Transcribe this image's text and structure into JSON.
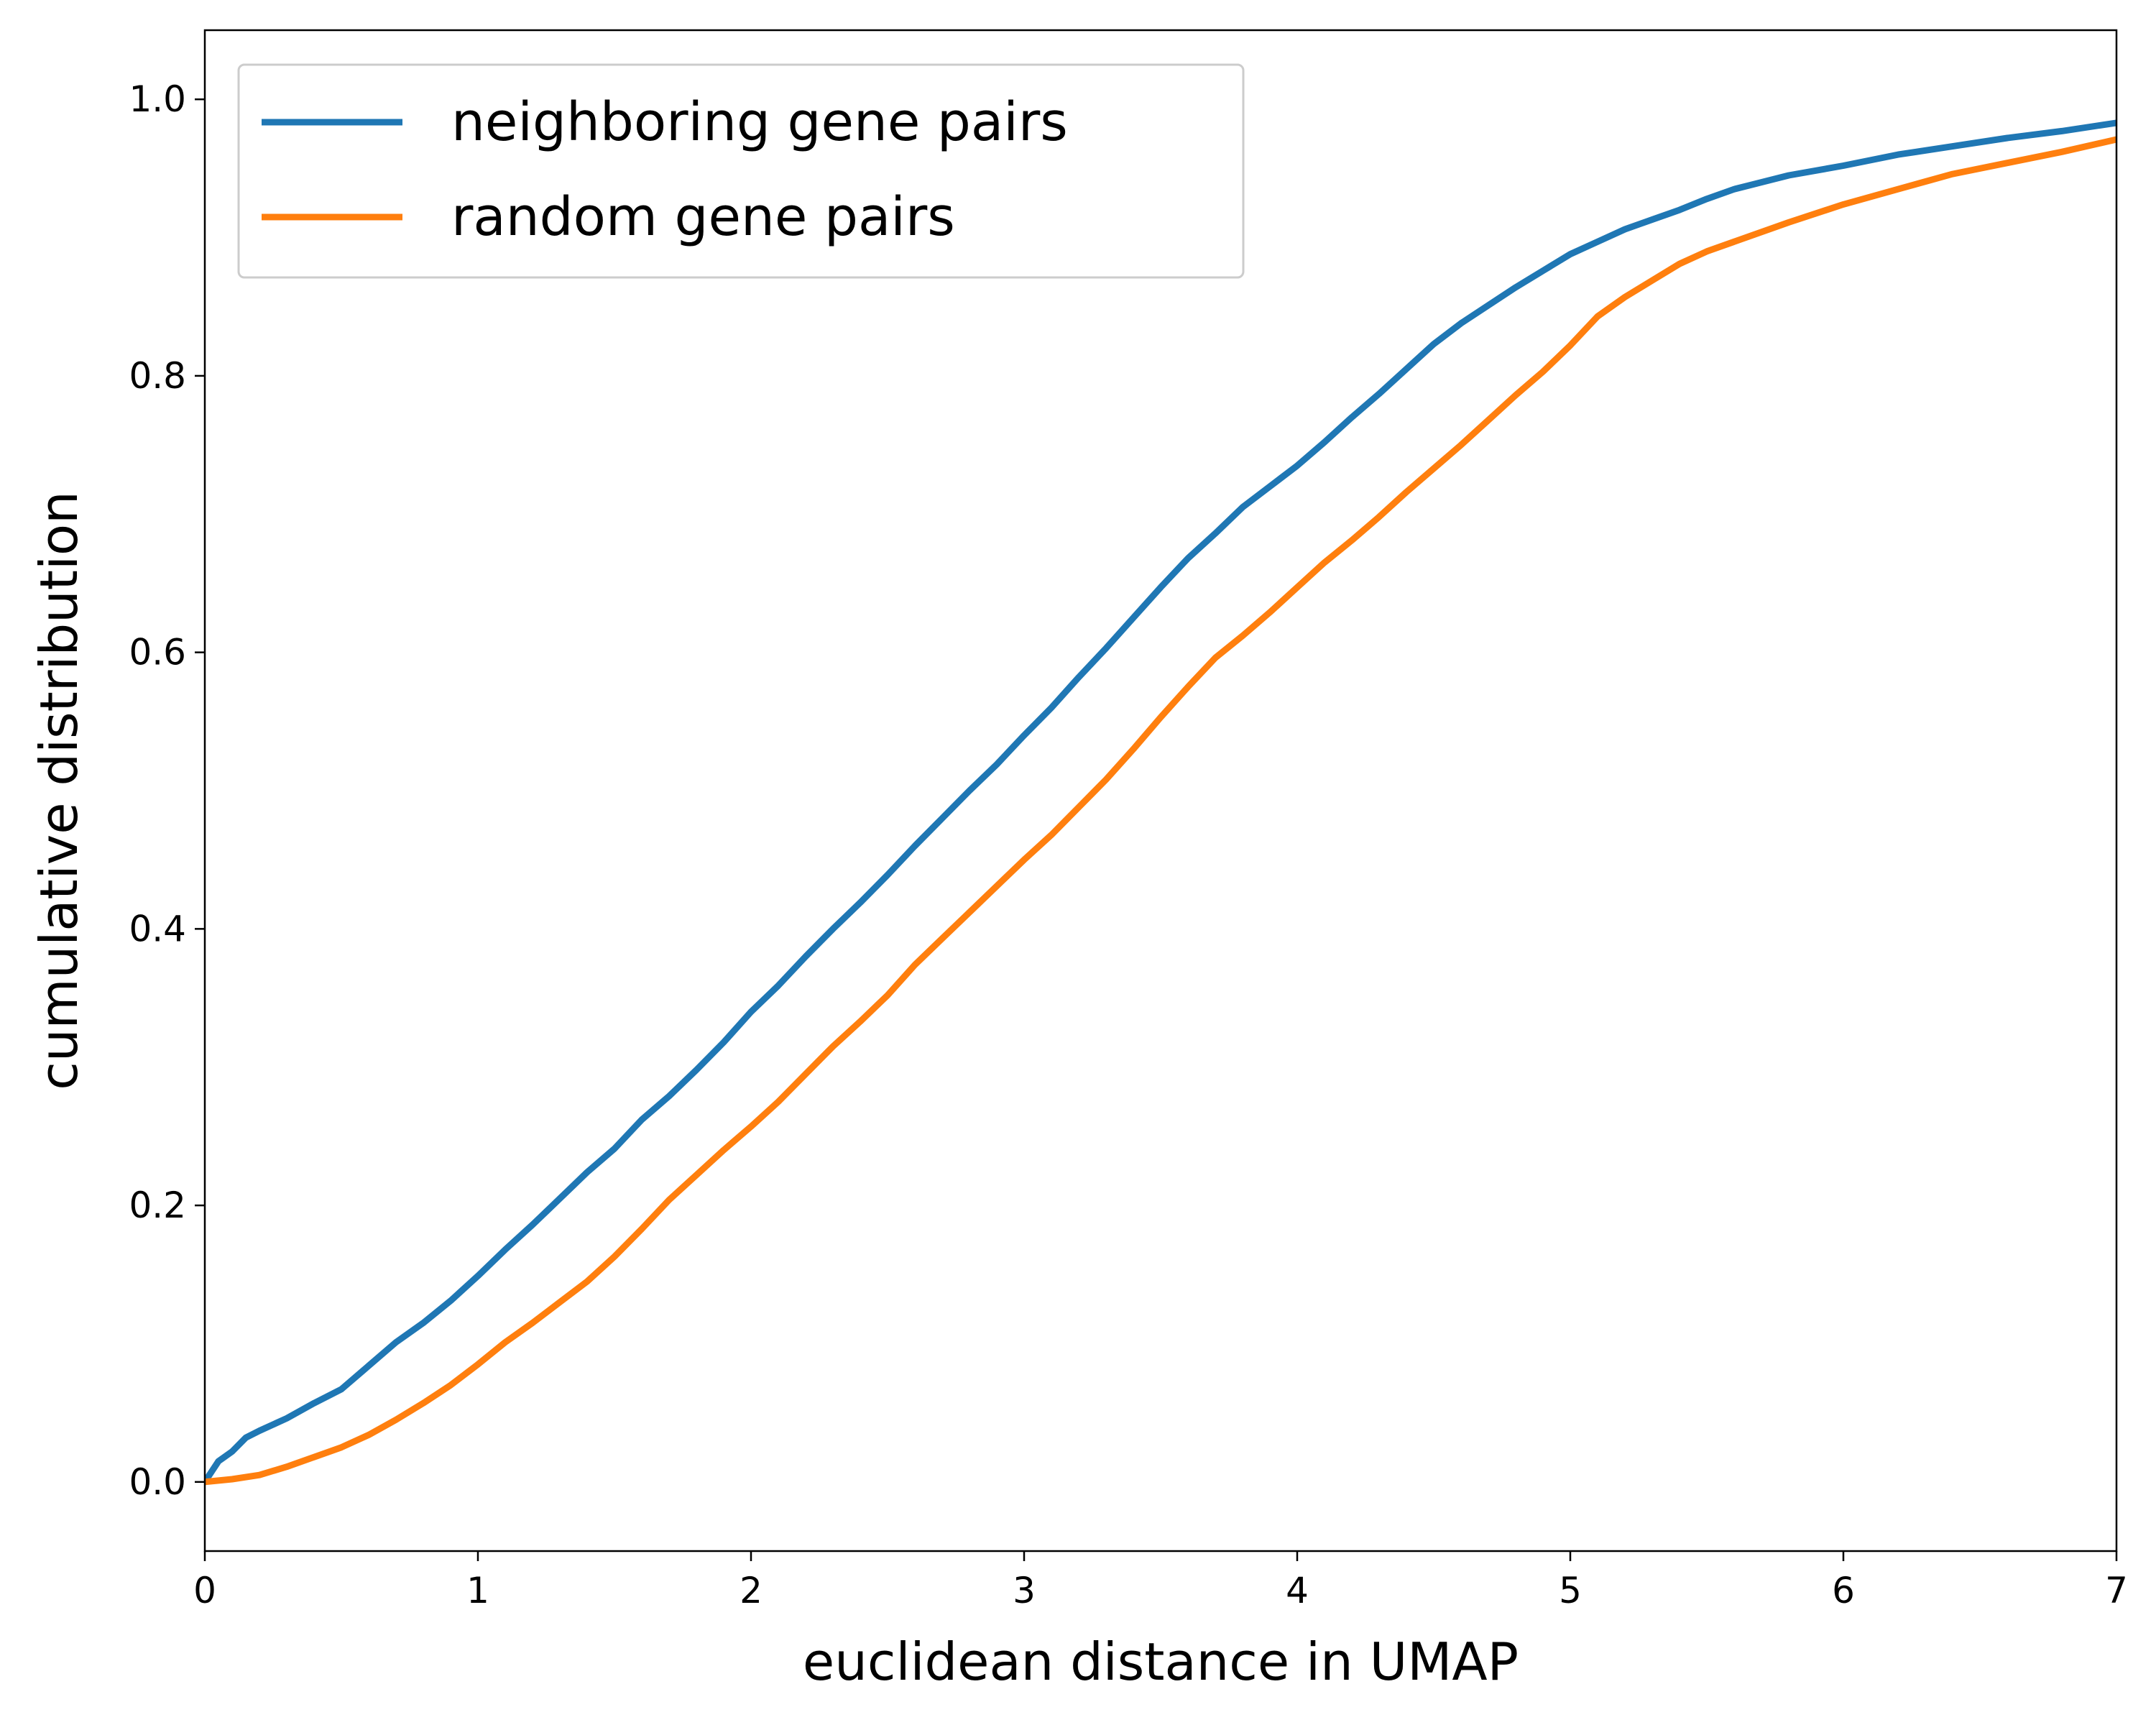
{
  "chart_data": {
    "type": "line",
    "xlabel": "euclidean distance in UMAP",
    "ylabel": "cumulative distribution",
    "xlim": [
      0,
      7
    ],
    "ylim": [
      -0.05,
      1.05
    ],
    "x_ticks": [
      0,
      1,
      2,
      3,
      4,
      5,
      6,
      7
    ],
    "x_tick_labels": [
      "0",
      "1",
      "2",
      "3",
      "4",
      "5",
      "6",
      "7"
    ],
    "y_ticks": [
      0.0,
      0.2,
      0.4,
      0.6,
      0.8,
      1.0
    ],
    "y_tick_labels": [
      "0.0",
      "0.2",
      "0.4",
      "0.6",
      "0.8",
      "1.0"
    ],
    "grid": false,
    "legend_position": "top-left",
    "series": [
      {
        "name": "neighboring gene pairs",
        "color": "#1f77b4",
        "x": [
          0,
          0.05,
          0.1,
          0.15,
          0.2,
          0.3,
          0.4,
          0.5,
          0.6,
          0.7,
          0.8,
          0.9,
          1.0,
          1.1,
          1.2,
          1.3,
          1.4,
          1.5,
          1.6,
          1.7,
          1.8,
          1.9,
          2.0,
          2.1,
          2.2,
          2.3,
          2.4,
          2.5,
          2.6,
          2.7,
          2.8,
          2.9,
          3.0,
          3.1,
          3.2,
          3.3,
          3.4,
          3.5,
          3.6,
          3.7,
          3.8,
          3.9,
          4.0,
          4.1,
          4.2,
          4.3,
          4.4,
          4.5,
          4.6,
          4.7,
          4.8,
          4.9,
          5.0,
          5.1,
          5.2,
          5.3,
          5.4,
          5.5,
          5.6,
          5.8,
          6.0,
          6.2,
          6.4,
          6.6,
          6.8,
          7.0
        ],
        "y": [
          0.0,
          0.015,
          0.022,
          0.032,
          0.037,
          0.046,
          0.057,
          0.067,
          0.084,
          0.101,
          0.115,
          0.131,
          0.149,
          0.168,
          0.186,
          0.205,
          0.224,
          0.241,
          0.262,
          0.279,
          0.298,
          0.318,
          0.34,
          0.359,
          0.38,
          0.4,
          0.419,
          0.439,
          0.46,
          0.48,
          0.5,
          0.519,
          0.54,
          0.56,
          0.582,
          0.603,
          0.625,
          0.647,
          0.668,
          0.686,
          0.705,
          0.72,
          0.735,
          0.752,
          0.77,
          0.787,
          0.805,
          0.823,
          0.838,
          0.851,
          0.864,
          0.876,
          0.888,
          0.897,
          0.906,
          0.913,
          0.92,
          0.928,
          0.935,
          0.945,
          0.952,
          0.96,
          0.966,
          0.972,
          0.977,
          0.983
        ]
      },
      {
        "name": "random gene pairs",
        "color": "#ff7f0e",
        "x": [
          0,
          0.1,
          0.2,
          0.3,
          0.4,
          0.5,
          0.6,
          0.7,
          0.8,
          0.9,
          1.0,
          1.1,
          1.2,
          1.3,
          1.4,
          1.5,
          1.6,
          1.7,
          1.8,
          1.9,
          2.0,
          2.1,
          2.2,
          2.3,
          2.4,
          2.5,
          2.6,
          2.7,
          2.8,
          2.9,
          3.0,
          3.1,
          3.2,
          3.3,
          3.4,
          3.5,
          3.6,
          3.7,
          3.8,
          3.9,
          4.0,
          4.1,
          4.2,
          4.3,
          4.4,
          4.5,
          4.6,
          4.7,
          4.8,
          4.9,
          5.0,
          5.1,
          5.2,
          5.3,
          5.4,
          5.5,
          5.6,
          5.8,
          6.0,
          6.2,
          6.4,
          6.6,
          6.8,
          7.0
        ],
        "y": [
          0.0,
          0.002,
          0.005,
          0.011,
          0.018,
          0.025,
          0.034,
          0.045,
          0.057,
          0.07,
          0.085,
          0.101,
          0.115,
          0.13,
          0.145,
          0.163,
          0.183,
          0.204,
          0.222,
          0.24,
          0.257,
          0.275,
          0.295,
          0.315,
          0.333,
          0.352,
          0.374,
          0.393,
          0.412,
          0.431,
          0.45,
          0.468,
          0.488,
          0.508,
          0.53,
          0.553,
          0.575,
          0.596,
          0.612,
          0.629,
          0.647,
          0.665,
          0.681,
          0.698,
          0.716,
          0.733,
          0.75,
          0.768,
          0.786,
          0.803,
          0.822,
          0.843,
          0.857,
          0.869,
          0.881,
          0.89,
          0.897,
          0.911,
          0.924,
          0.935,
          0.946,
          0.954,
          0.962,
          0.971
        ]
      }
    ]
  }
}
